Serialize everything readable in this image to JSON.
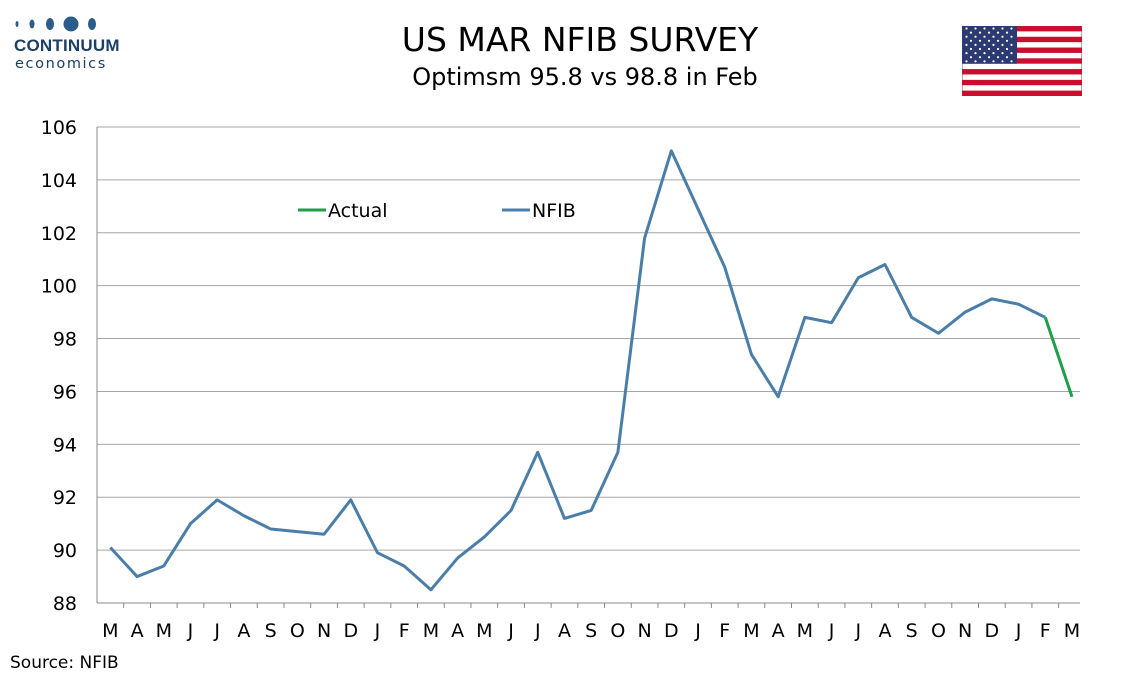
{
  "header": {
    "logo_name": "CONTINUUM",
    "logo_sub": "economics",
    "title": "US MAR NFIB SURVEY",
    "subtitle": "Optimsm 95.8 vs 98.8 in Feb"
  },
  "footer": {
    "source": "Source: NFIB"
  },
  "colors": {
    "nfib": "#4a7ea8",
    "actual": "#1f9e4a",
    "grid": "#a6a6a6",
    "flag_blue": "#2b3a73",
    "flag_red": "#c8102e"
  },
  "chart_data": {
    "type": "line",
    "title": "US MAR NFIB SURVEY",
    "subtitle": "Optimsm 95.8 vs 98.8 in Feb",
    "xlabel": "",
    "ylabel": "",
    "ylim": [
      88,
      106
    ],
    "yticks": [
      88,
      90,
      92,
      94,
      96,
      98,
      100,
      102,
      104,
      106
    ],
    "grid": true,
    "legend_position": "top-left",
    "categories": [
      "M",
      "A",
      "M",
      "J",
      "J",
      "A",
      "S",
      "O",
      "N",
      "D",
      "J",
      "F",
      "M",
      "A",
      "M",
      "J",
      "J",
      "A",
      "S",
      "O",
      "N",
      "D",
      "J",
      "F",
      "M",
      "A",
      "M",
      "J",
      "J",
      "A",
      "S",
      "O",
      "N",
      "D",
      "J",
      "F",
      "M"
    ],
    "series": [
      {
        "name": "Actual",
        "color": "#1f9e4a",
        "values": [
          null,
          null,
          null,
          null,
          null,
          null,
          null,
          null,
          null,
          null,
          null,
          null,
          null,
          null,
          null,
          null,
          null,
          null,
          null,
          null,
          null,
          null,
          null,
          null,
          null,
          null,
          null,
          null,
          null,
          null,
          null,
          null,
          null,
          null,
          null,
          98.8,
          95.8
        ]
      },
      {
        "name": "NFIB",
        "color": "#4a7ea8",
        "values": [
          90.1,
          89.0,
          89.4,
          91.0,
          91.9,
          91.3,
          90.8,
          90.7,
          90.6,
          91.9,
          89.9,
          89.4,
          88.5,
          89.7,
          90.5,
          91.5,
          93.7,
          91.2,
          91.5,
          93.7,
          101.8,
          105.1,
          102.9,
          100.7,
          97.4,
          95.8,
          98.8,
          98.6,
          100.3,
          100.8,
          98.8,
          98.2,
          99.0,
          99.5,
          99.3,
          98.8,
          null
        ]
      }
    ]
  }
}
